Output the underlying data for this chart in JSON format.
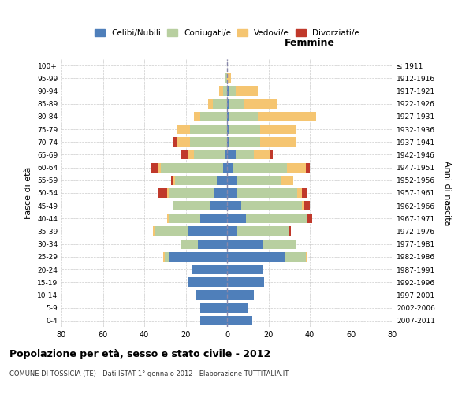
{
  "age_groups": [
    "0-4",
    "5-9",
    "10-14",
    "15-19",
    "20-24",
    "25-29",
    "30-34",
    "35-39",
    "40-44",
    "45-49",
    "50-54",
    "55-59",
    "60-64",
    "65-69",
    "70-74",
    "75-79",
    "80-84",
    "85-89",
    "90-94",
    "95-99",
    "100+"
  ],
  "birth_years": [
    "2007-2011",
    "2002-2006",
    "1997-2001",
    "1992-1996",
    "1987-1991",
    "1982-1986",
    "1977-1981",
    "1972-1976",
    "1967-1971",
    "1962-1966",
    "1957-1961",
    "1952-1956",
    "1947-1951",
    "1942-1946",
    "1937-1941",
    "1932-1936",
    "1927-1931",
    "1922-1926",
    "1917-1921",
    "1912-1916",
    "≤ 1911"
  ],
  "male": {
    "celibi": [
      13,
      13,
      15,
      19,
      17,
      28,
      14,
      19,
      13,
      8,
      6,
      5,
      2,
      1,
      0,
      0,
      0,
      0,
      0,
      0,
      0
    ],
    "coniugati": [
      0,
      0,
      0,
      0,
      0,
      2,
      8,
      16,
      15,
      18,
      22,
      20,
      30,
      15,
      18,
      18,
      13,
      7,
      2,
      1,
      0
    ],
    "vedovi": [
      0,
      0,
      0,
      0,
      0,
      1,
      0,
      1,
      1,
      0,
      1,
      1,
      1,
      3,
      6,
      6,
      3,
      2,
      2,
      0,
      0
    ],
    "divorziati": [
      0,
      0,
      0,
      0,
      0,
      0,
      0,
      0,
      0,
      0,
      4,
      1,
      4,
      3,
      2,
      0,
      0,
      0,
      0,
      0,
      0
    ]
  },
  "female": {
    "nubili": [
      12,
      10,
      13,
      18,
      17,
      28,
      17,
      5,
      9,
      7,
      5,
      5,
      3,
      4,
      1,
      1,
      1,
      1,
      1,
      0,
      0
    ],
    "coniugate": [
      0,
      0,
      0,
      0,
      0,
      10,
      16,
      25,
      30,
      29,
      29,
      21,
      26,
      9,
      15,
      15,
      14,
      7,
      3,
      0,
      0
    ],
    "vedove": [
      0,
      0,
      0,
      0,
      0,
      1,
      0,
      0,
      0,
      1,
      2,
      6,
      9,
      8,
      17,
      17,
      28,
      16,
      11,
      2,
      0
    ],
    "divorziate": [
      0,
      0,
      0,
      0,
      0,
      0,
      0,
      1,
      2,
      3,
      3,
      0,
      2,
      1,
      0,
      0,
      0,
      0,
      0,
      0,
      0
    ]
  },
  "colors": {
    "celibi_nubili": "#4f7fba",
    "coniugati": "#b8cfa0",
    "vedovi": "#f5c571",
    "divorziati": "#c0392b"
  },
  "title": "Popolazione per età, sesso e stato civile - 2012",
  "subtitle": "COMUNE DI TOSSICIA (TE) - Dati ISTAT 1° gennaio 2012 - Elaborazione TUTTITALIA.IT",
  "xlabel_right": "Femmine",
  "ylabel_left": "Fasce di età",
  "ylabel_right": "Anni di nascita",
  "xlim": 80,
  "legend_labels": [
    "Celibi/Nubili",
    "Coniugati/e",
    "Vedovi/e",
    "Divorziati/e"
  ],
  "bg_color": "#ffffff",
  "grid_color": "#cccccc"
}
